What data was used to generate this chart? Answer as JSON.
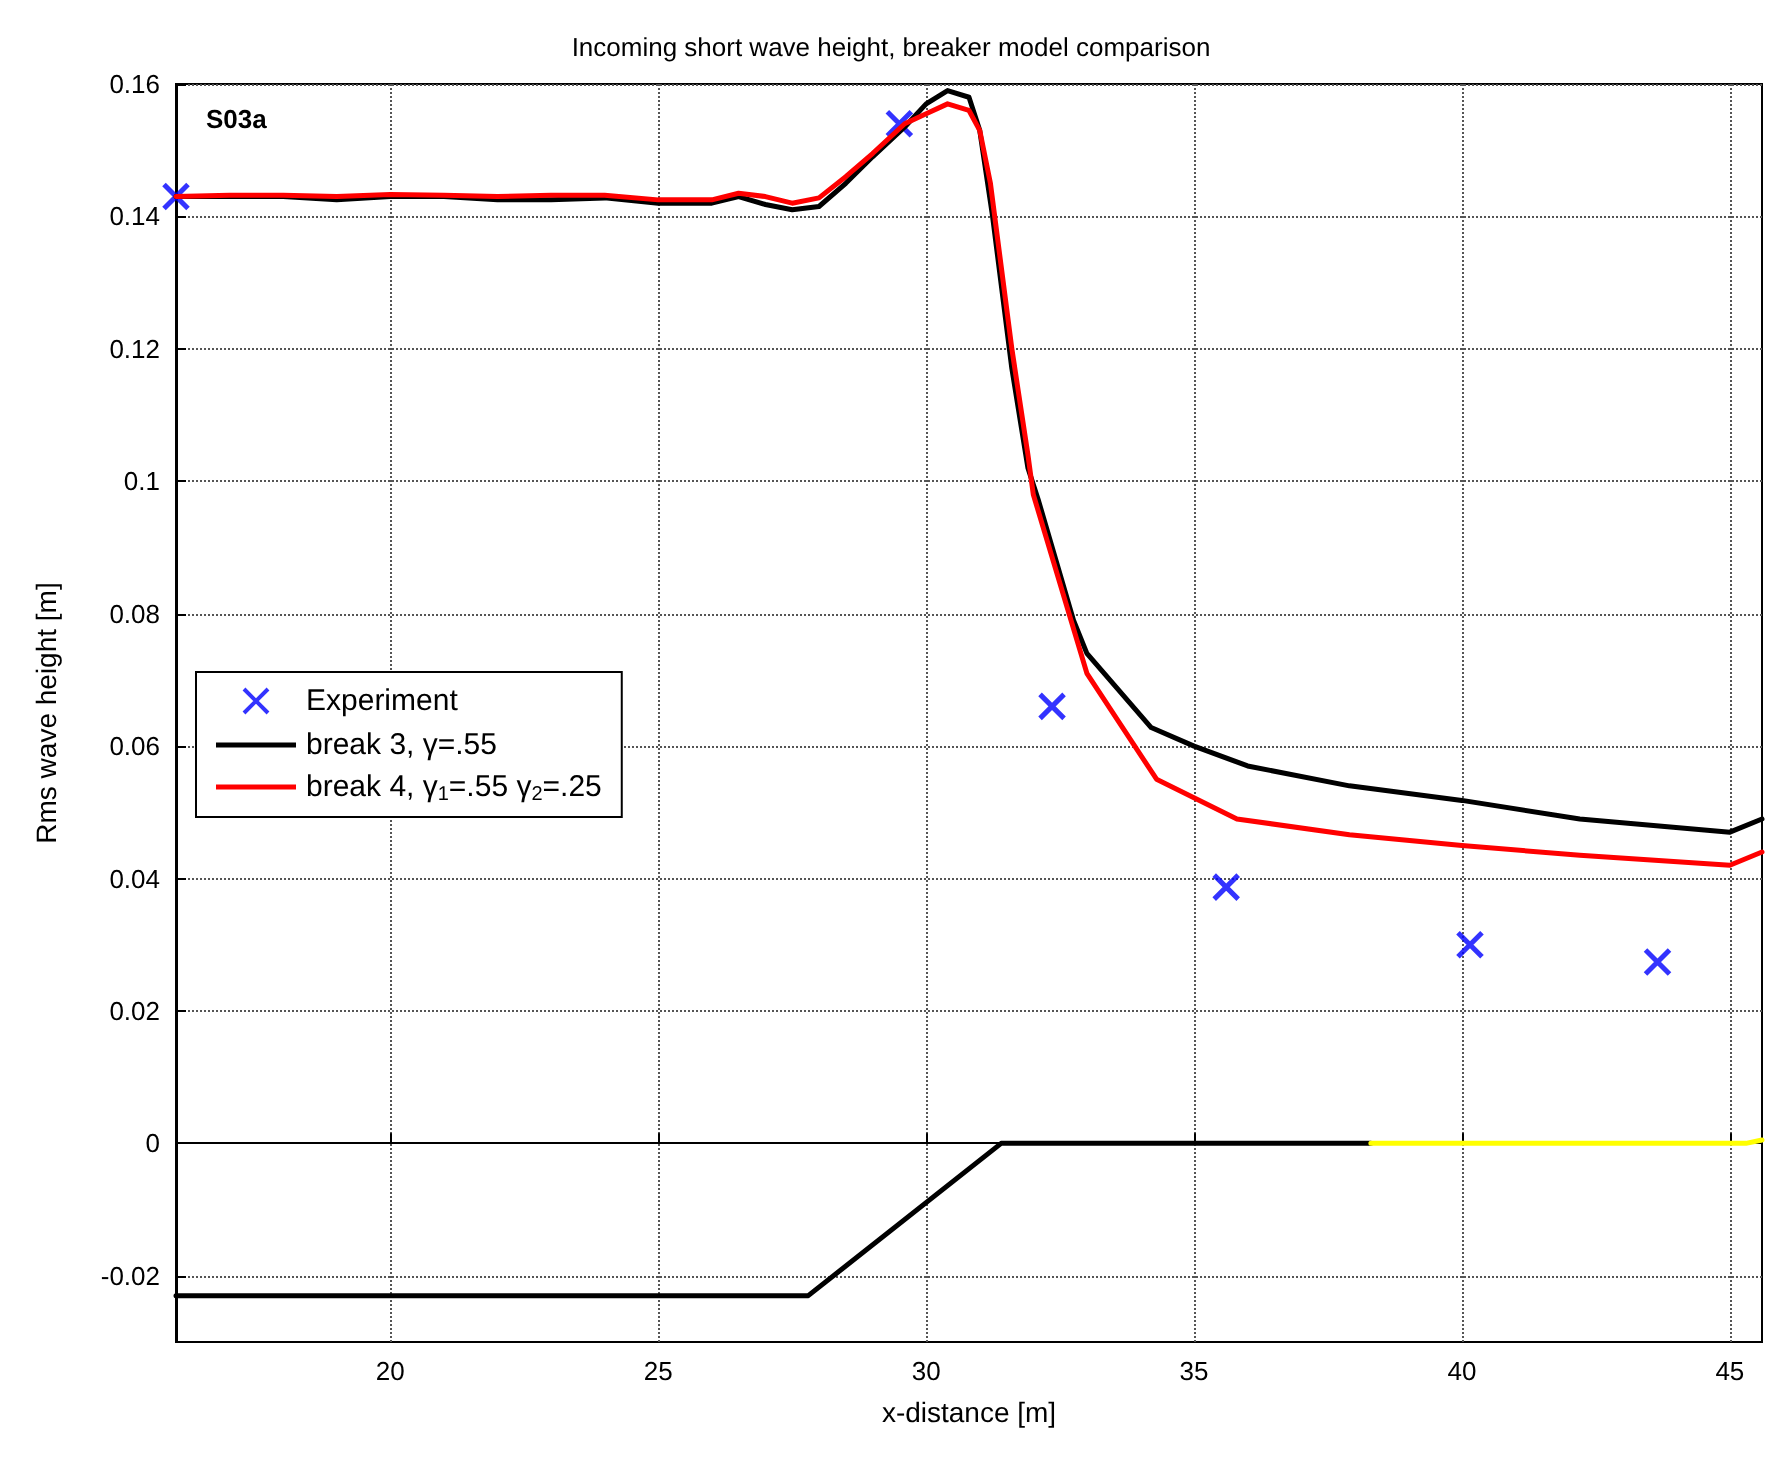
{
  "chart_data": {
    "type": "line",
    "title": "Incoming short wave height, breaker model comparison",
    "xlabel": "x-distance [m]",
    "ylabel": "Rms wave height [m]",
    "annotations": [
      "S03a"
    ],
    "xlim": [
      16,
      45.6
    ],
    "xticks": [
      20,
      25,
      30,
      35,
      40,
      45
    ],
    "ylim": [
      -0.03,
      0.16
    ],
    "yticks": [
      -0.02,
      0,
      0.02,
      0.04,
      0.06,
      0.08,
      0.1,
      0.12,
      0.14,
      0.16
    ],
    "grid": true,
    "legend": "left",
    "series": [
      {
        "name": "Experiment",
        "type": "scatter",
        "marker": "cross",
        "color": "#0000ff",
        "x": [
          16.0,
          29.5,
          32.35,
          35.6,
          40.15,
          43.65
        ],
        "values": [
          0.143,
          0.154,
          0.066,
          0.0387,
          0.03,
          0.0274
        ]
      },
      {
        "name": "break 3, γ=.55",
        "marker": "none",
        "color": "#000000",
        "x": [
          16,
          17,
          18,
          19,
          20,
          21,
          22,
          23,
          24,
          25,
          26,
          26.5,
          27,
          27.5,
          28,
          28.5,
          29,
          29.6,
          30,
          30.4,
          30.8,
          31.0,
          31.24,
          31.6,
          31.9,
          32.1,
          32.75,
          33.0,
          34.2,
          35.0,
          36.0,
          37.9,
          40.0,
          42.2,
          45.0,
          45.6
        ],
        "values": [
          0.143,
          0.143,
          0.143,
          0.1425,
          0.143,
          0.143,
          0.1425,
          0.1425,
          0.1428,
          0.142,
          0.142,
          0.143,
          0.1418,
          0.141,
          0.1415,
          0.145,
          0.149,
          0.1535,
          0.157,
          0.159,
          0.158,
          0.153,
          0.14,
          0.117,
          0.102,
          0.097,
          0.079,
          0.074,
          0.0628,
          0.06,
          0.057,
          0.054,
          0.0518,
          0.049,
          0.047,
          0.049
        ]
      },
      {
        "name": "break 4, γ$_{1}$=.55 γ$_{2}$=.25",
        "marker": "none",
        "color": "#ff0000",
        "x": [
          16,
          17,
          18,
          19,
          20,
          21,
          22,
          23,
          24,
          25,
          26,
          26.5,
          27,
          27.5,
          28,
          28.5,
          29,
          29.6,
          30,
          30.4,
          30.8,
          31.0,
          31.2,
          31.6,
          31.9,
          32.0,
          33.0,
          34.3,
          35.8,
          37.9,
          40.0,
          42.2,
          45.0,
          45.6
        ],
        "values": [
          0.143,
          0.1432,
          0.1432,
          0.143,
          0.1433,
          0.1432,
          0.143,
          0.1432,
          0.1432,
          0.1425,
          0.1425,
          0.1435,
          0.143,
          0.142,
          0.1428,
          0.146,
          0.1495,
          0.154,
          0.1555,
          0.157,
          0.156,
          0.153,
          0.145,
          0.12,
          0.104,
          0.098,
          0.071,
          0.055,
          0.049,
          0.0466,
          0.045,
          0.0435,
          0.042,
          0.044
        ]
      },
      {
        "marker": "none",
        "color": "#000000",
        "x": [
          16,
          27.8,
          31.4,
          38.3
        ],
        "values": [
          -0.023,
          -0.023,
          0,
          0
        ]
      },
      {
        "marker": "none",
        "color": "#ffff00",
        "x": [
          38.3,
          45.3,
          45.6
        ],
        "values": [
          0,
          0,
          0.0005
        ]
      }
    ]
  }
}
